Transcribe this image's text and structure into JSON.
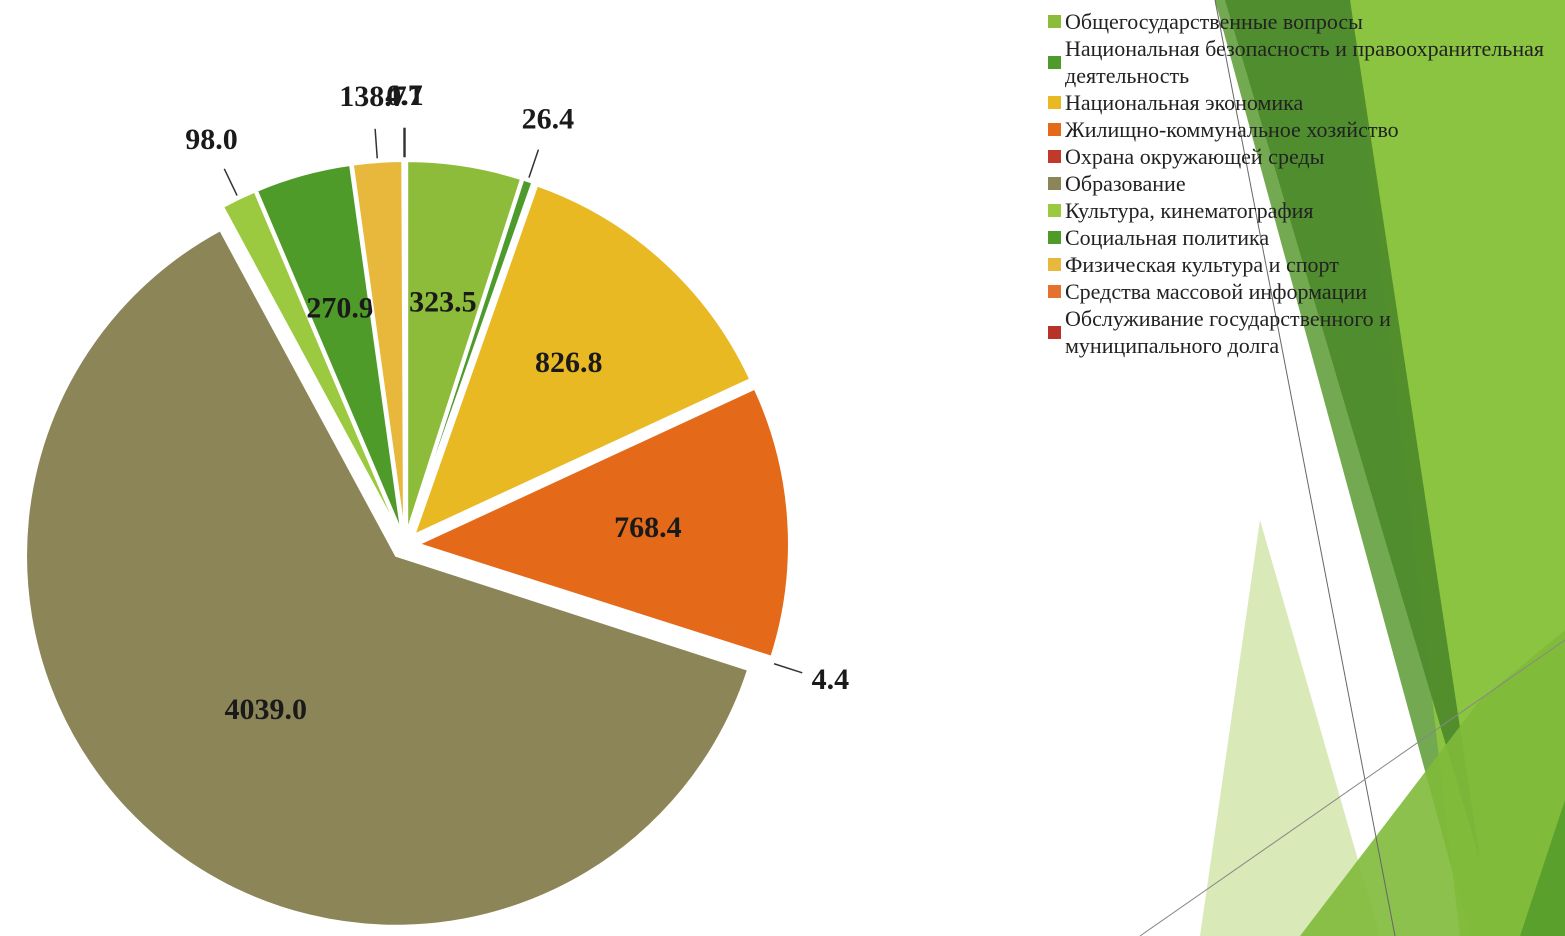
{
  "chart_data": {
    "type": "pie",
    "categories": [
      "Общегосударственные вопросы",
      "Национальная безопасность и правоохранительная деятельность",
      "Национальная экономика",
      "Жилищно-коммунальное хозяйство",
      "Охрана окружающей среды",
      "Образование",
      "Культура, кинематография",
      "Социальная политика",
      "Физическая культура и спорт",
      "Средства массовой информации",
      "Обслуживание государственного и муниципального долга"
    ],
    "values": [
      323.5,
      26.4,
      826.8,
      768.4,
      4.4,
      4039.0,
      98.0,
      270.9,
      138.7,
      4.7,
      0.1
    ],
    "value_labels": [
      "323.5",
      "26.4",
      "826.8",
      "768.4",
      "4.4",
      "4039.0",
      "98.0",
      "270.9",
      "138.7",
      "4.7",
      "0.1"
    ],
    "colors": [
      "#8dbb3a",
      "#4f9a2c",
      "#e8b923",
      "#e46a1a",
      "#c0392b",
      "#8c8558",
      "#9bc93f",
      "#4e9b2a",
      "#e7b83b",
      "#e4722d",
      "#b83228"
    ],
    "legend": "right"
  }
}
